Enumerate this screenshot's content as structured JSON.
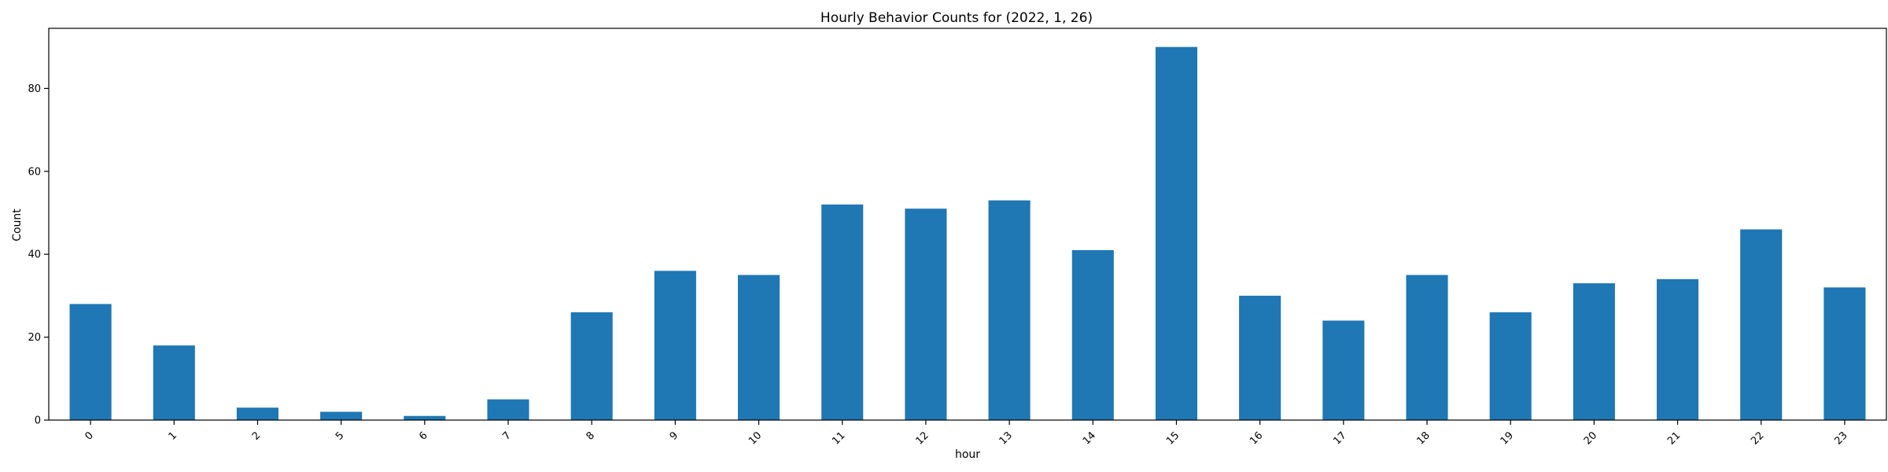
{
  "chart_data": {
    "type": "bar",
    "title": "Hourly Behavior Counts for (2022, 1, 26)",
    "xlabel": "hour",
    "ylabel": "Count",
    "categories": [
      "0",
      "1",
      "2",
      "5",
      "6",
      "7",
      "8",
      "9",
      "10",
      "11",
      "12",
      "13",
      "14",
      "15",
      "16",
      "17",
      "18",
      "19",
      "20",
      "21",
      "22",
      "23"
    ],
    "values": [
      28,
      18,
      3,
      2,
      1,
      5,
      26,
      36,
      35,
      52,
      51,
      53,
      41,
      90,
      30,
      24,
      35,
      26,
      33,
      34,
      46,
      32
    ],
    "yticks": [
      0,
      20,
      40,
      60,
      80
    ],
    "ylim": [
      0,
      94.5
    ],
    "bar_color": "#1f77b4",
    "grid": false,
    "legend": "none"
  }
}
